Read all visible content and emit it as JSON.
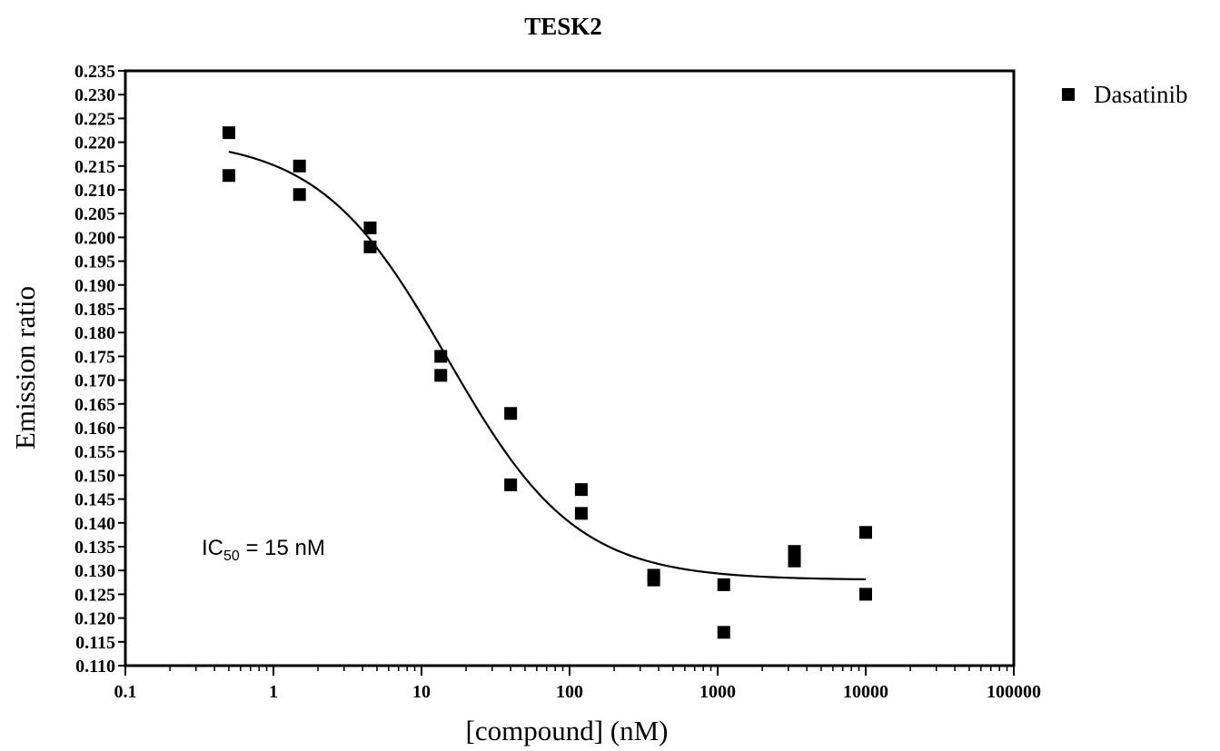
{
  "chart_data": {
    "type": "scatter",
    "title": "TESK2",
    "xlabel": "[compound] (nM)",
    "ylabel": "Emission ratio",
    "x_scale": "log",
    "xlim": [
      0.1,
      100000
    ],
    "ylim": [
      0.11,
      0.235
    ],
    "x_ticks": [
      0.1,
      1,
      10,
      100,
      1000,
      10000,
      100000
    ],
    "x_tick_labels": [
      "0.1",
      "1",
      "10",
      "100",
      "1000",
      "10000",
      "100000"
    ],
    "y_ticks": [
      0.11,
      0.115,
      0.12,
      0.125,
      0.13,
      0.135,
      0.14,
      0.145,
      0.15,
      0.155,
      0.16,
      0.165,
      0.17,
      0.175,
      0.18,
      0.185,
      0.19,
      0.195,
      0.2,
      0.205,
      0.21,
      0.215,
      0.22,
      0.225,
      0.23,
      0.235
    ],
    "y_tick_labels": [
      "0.110",
      "0.115",
      "0.120",
      "0.125",
      "0.130",
      "0.135",
      "0.140",
      "0.145",
      "0.150",
      "0.155",
      "0.160",
      "0.165",
      "0.170",
      "0.175",
      "0.180",
      "0.185",
      "0.190",
      "0.195",
      "0.200",
      "0.205",
      "0.210",
      "0.215",
      "0.220",
      "0.225",
      "0.230",
      "0.235"
    ],
    "grid": false,
    "legend": {
      "placement": "top-right, outside plot",
      "entries": [
        "Dasatinib"
      ]
    },
    "series": [
      {
        "name": "Dasatinib",
        "marker": "square",
        "color": "#000000",
        "points": [
          {
            "x": 0.5,
            "y": 0.222
          },
          {
            "x": 0.5,
            "y": 0.213
          },
          {
            "x": 1.5,
            "y": 0.215
          },
          {
            "x": 1.5,
            "y": 0.209
          },
          {
            "x": 4.5,
            "y": 0.202
          },
          {
            "x": 4.5,
            "y": 0.198
          },
          {
            "x": 13.5,
            "y": 0.175
          },
          {
            "x": 13.5,
            "y": 0.171
          },
          {
            "x": 40,
            "y": 0.163
          },
          {
            "x": 40,
            "y": 0.148
          },
          {
            "x": 120,
            "y": 0.147
          },
          {
            "x": 120,
            "y": 0.142
          },
          {
            "x": 370,
            "y": 0.129
          },
          {
            "x": 370,
            "y": 0.128
          },
          {
            "x": 1100,
            "y": 0.127
          },
          {
            "x": 1100,
            "y": 0.117
          },
          {
            "x": 3300,
            "y": 0.134
          },
          {
            "x": 3300,
            "y": 0.132
          },
          {
            "x": 10000,
            "y": 0.138
          },
          {
            "x": 10000,
            "y": 0.125
          }
        ],
        "fit": {
          "model": "sigmoidal dose-response",
          "top": 0.221,
          "bottom": 0.128,
          "ic50": 15,
          "hill_slope": -1.0,
          "x_range": [
            0.5,
            10000
          ]
        }
      }
    ],
    "annotation": {
      "prefix": "IC",
      "subscript": "50",
      "text": " = 15  nM"
    }
  }
}
